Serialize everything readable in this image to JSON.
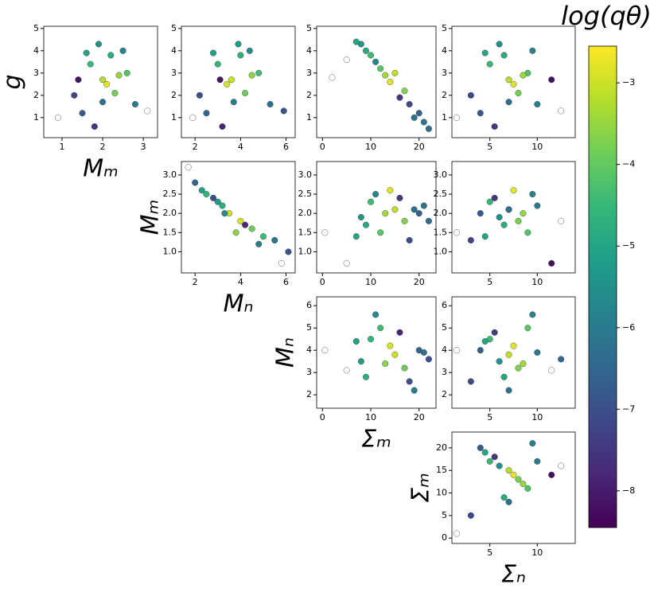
{
  "chart_data": [
    {
      "type": "scatter",
      "xlabel": "Mₘ",
      "ylabel": "g",
      "x": [
        2.0,
        1.7,
        2.3,
        1.5,
        2.6,
        1.9,
        2.1,
        1.3,
        2.8,
        2.2,
        1.8,
        2.4,
        0.9,
        3.1,
        1.6,
        2.0,
        2.5,
        1.4
      ],
      "y": [
        2.7,
        3.4,
        2.1,
        1.2,
        3.0,
        4.3,
        2.5,
        2.0,
        1.6,
        3.8,
        0.6,
        2.9,
        1.0,
        1.3,
        3.9,
        1.7,
        4.0,
        2.7
      ],
      "c": [
        -3.2,
        -4.5,
        -3.8,
        -6.8,
        -4.2,
        -5.5,
        -2.8,
        -7.2,
        -6.0,
        -4.8,
        -7.5,
        -3.5,
        null,
        null,
        -5.0,
        -6.3,
        -5.8,
        -8.2
      ],
      "xlim": [
        0.55,
        3.35
      ],
      "xticks": [
        1,
        2,
        3
      ],
      "ylim": [
        0.1,
        5.1
      ],
      "yticks": [
        1,
        2,
        3,
        4,
        5
      ]
    },
    {
      "type": "scatter",
      "x": [
        3.6,
        3.0,
        4.2,
        2.5,
        4.8,
        3.9,
        3.4,
        2.2,
        5.3,
        4.0,
        3.2,
        4.5,
        1.9,
        5.9,
        2.8,
        3.7,
        4.4,
        3.1
      ],
      "y": [
        2.7,
        3.4,
        2.1,
        1.2,
        3.0,
        4.3,
        2.5,
        2.0,
        1.6,
        3.8,
        0.6,
        2.9,
        1.0,
        1.3,
        3.9,
        1.7,
        4.0,
        2.7
      ],
      "c": [
        -3.0,
        -4.6,
        -3.9,
        -6.5,
        -4.4,
        -5.2,
        -2.9,
        -7.0,
        -6.2,
        -4.7,
        -7.8,
        -3.6,
        null,
        -6.9,
        -5.1,
        -6.0,
        -5.6,
        -8.1
      ],
      "xlim": [
        1.4,
        6.4
      ],
      "xticks": [
        2,
        4,
        6
      ],
      "ylim": [
        0.1,
        5.1
      ],
      "yticks": [
        1,
        2,
        3,
        4,
        5
      ]
    },
    {
      "type": "scatter",
      "x": [
        15,
        10,
        17,
        20,
        12,
        8,
        14,
        18,
        21,
        9,
        16,
        13,
        2,
        22,
        7,
        19,
        11,
        5
      ],
      "y": [
        3.0,
        3.8,
        2.2,
        1.2,
        3.2,
        4.3,
        2.6,
        1.6,
        0.8,
        4.0,
        1.9,
        2.9,
        2.8,
        0.5,
        4.4,
        1.0,
        3.5,
        3.6
      ],
      "c": [
        -3.1,
        -4.4,
        -3.7,
        -6.6,
        -4.1,
        -5.4,
        -2.8,
        -7.1,
        -6.1,
        -4.9,
        -7.4,
        -3.4,
        null,
        -6.4,
        -5.0,
        -6.2,
        -5.7,
        null
      ],
      "xlim": [
        -1.2,
        23.5
      ],
      "xticks": [
        0,
        10,
        20
      ],
      "ylim": [
        0.1,
        5.1
      ],
      "yticks": [
        1,
        2,
        3,
        4,
        5
      ]
    },
    {
      "type": "scatter",
      "x": [
        7,
        5,
        8,
        4,
        9,
        6,
        7.5,
        3,
        10,
        6.5,
        5.5,
        8.5,
        1.5,
        12.5,
        4.5,
        7,
        9.5,
        11.5
      ],
      "y": [
        2.7,
        3.4,
        2.1,
        1.2,
        3.0,
        4.3,
        2.5,
        2.0,
        1.6,
        3.8,
        0.6,
        2.9,
        1.0,
        1.3,
        3.9,
        1.7,
        4.0,
        2.7
      ],
      "c": [
        -3.2,
        -4.5,
        -3.8,
        -6.8,
        -4.2,
        -5.5,
        -2.8,
        -7.2,
        -6.0,
        -4.8,
        -7.5,
        -3.5,
        null,
        null,
        -5.0,
        -6.3,
        -5.8,
        -8.2
      ],
      "xlim": [
        1,
        14
      ],
      "xticks": [
        5,
        10
      ],
      "ylim": [
        0.1,
        5.1
      ],
      "yticks": [
        1,
        2,
        3,
        4,
        5
      ]
    },
    {
      "type": "scatter",
      "xlabel": "Mₙ",
      "ylabel": "Mₘ",
      "x": [
        3.5,
        2.5,
        4.5,
        2.0,
        5.0,
        3.0,
        4.0,
        2.8,
        5.5,
        3.2,
        4.2,
        3.8,
        1.7,
        6.1,
        2.3,
        4.8,
        3.3,
        5.8
      ],
      "y": [
        2.0,
        2.5,
        1.6,
        2.8,
        1.4,
        2.3,
        1.8,
        2.4,
        1.3,
        2.2,
        1.7,
        1.5,
        3.2,
        1.0,
        2.6,
        1.2,
        2.0,
        0.7
      ],
      "c": [
        -3.0,
        -4.6,
        -3.9,
        -6.5,
        -4.4,
        -5.2,
        -2.9,
        -7.0,
        -6.2,
        -4.7,
        -7.8,
        -3.6,
        null,
        -6.9,
        -5.1,
        -6.0,
        -5.6,
        null
      ],
      "xlim": [
        1.4,
        6.4
      ],
      "xticks": [
        2,
        4,
        6
      ],
      "ylim": [
        0.45,
        3.35
      ],
      "yticks": [
        {
          "value": 1,
          "label": "1.0"
        },
        {
          "value": 1.5,
          "label": "1.5"
        },
        {
          "value": 2,
          "label": "2.0"
        },
        {
          "value": 2.5,
          "label": "2.5"
        },
        {
          "value": 3,
          "label": "3.0"
        }
      ]
    },
    {
      "type": "scatter",
      "x": [
        15,
        10,
        17,
        20,
        12,
        8,
        14,
        18,
        21,
        9,
        16,
        13,
        0.5,
        22,
        7,
        19,
        11,
        5
      ],
      "y": [
        2.1,
        2.3,
        1.8,
        2.0,
        1.5,
        1.9,
        2.6,
        1.3,
        2.2,
        1.7,
        2.4,
        2.0,
        1.5,
        1.8,
        1.4,
        2.1,
        2.5,
        0.7
      ],
      "c": [
        -3.1,
        -4.4,
        -3.7,
        -6.6,
        -4.1,
        -5.4,
        -2.8,
        -7.1,
        -6.1,
        -4.9,
        -7.4,
        -3.4,
        null,
        -6.4,
        -5.0,
        -6.2,
        -5.7,
        null
      ],
      "xlim": [
        -1.2,
        23.5
      ],
      "xticks": [
        0,
        10,
        20
      ],
      "ylim": [
        0.45,
        3.35
      ],
      "yticks": [
        {
          "value": 1,
          "label": "1.0"
        },
        {
          "value": 1.5,
          "label": "1.5"
        },
        {
          "value": 2,
          "label": "2.0"
        },
        {
          "value": 2.5,
          "label": "2.5"
        },
        {
          "value": 3,
          "label": "3.0"
        }
      ]
    },
    {
      "type": "scatter",
      "x": [
        7,
        5,
        8,
        4,
        9,
        6,
        7.5,
        3,
        10,
        6.5,
        5.5,
        8.5,
        1.5,
        12.5,
        4.5,
        7,
        9.5,
        11.5
      ],
      "y": [
        2.1,
        2.3,
        1.8,
        2.0,
        1.5,
        1.9,
        2.6,
        1.3,
        2.2,
        1.7,
        2.4,
        2.0,
        1.5,
        1.8,
        1.4,
        2.1,
        2.5,
        0.7
      ],
      "c": [
        -3.2,
        -4.5,
        -3.8,
        -6.8,
        -4.2,
        -5.5,
        -2.8,
        -7.2,
        -6.0,
        -4.8,
        -7.5,
        -3.5,
        null,
        null,
        -5.0,
        -6.3,
        -5.8,
        -8.2
      ],
      "xlim": [
        1,
        14
      ],
      "xticks": [
        5,
        10
      ],
      "ylim": [
        0.45,
        3.35
      ],
      "yticks": [
        {
          "value": 1,
          "label": "1.0"
        },
        {
          "value": 1.5,
          "label": "1.5"
        },
        {
          "value": 2,
          "label": "2.0"
        },
        {
          "value": 2.5,
          "label": "2.5"
        },
        {
          "value": 3,
          "label": "3.0"
        }
      ]
    },
    {
      "type": "scatter",
      "xlabel": "Σₘ",
      "ylabel": "Mₙ",
      "x": [
        15,
        10,
        17,
        20,
        12,
        8,
        14,
        18,
        21,
        9,
        16,
        13,
        0.5,
        22,
        7,
        19,
        11,
        5
      ],
      "y": [
        3.8,
        4.5,
        3.2,
        4.0,
        5.0,
        3.5,
        4.2,
        2.6,
        3.9,
        2.8,
        4.8,
        3.4,
        4.0,
        3.6,
        4.4,
        2.2,
        5.6,
        3.1
      ],
      "c": [
        -3.0,
        -4.6,
        -3.9,
        -6.5,
        -4.4,
        -5.2,
        -2.9,
        -7.0,
        -6.2,
        -4.7,
        -7.8,
        -3.6,
        null,
        -6.9,
        -5.1,
        -6.0,
        -5.6,
        null
      ],
      "xlim": [
        -1.2,
        23.5
      ],
      "xticks": [
        0,
        10,
        20
      ],
      "ylim": [
        1.4,
        6.4
      ],
      "yticks": [
        2,
        3,
        4,
        5,
        6
      ]
    },
    {
      "type": "scatter",
      "x": [
        7,
        5,
        8,
        4,
        9,
        6,
        7.5,
        3,
        10,
        6.5,
        5.5,
        8.5,
        1.5,
        12.5,
        4.5,
        7,
        9.5,
        11.5
      ],
      "y": [
        3.8,
        4.5,
        3.2,
        4.0,
        5.0,
        3.5,
        4.2,
        2.6,
        3.9,
        2.8,
        4.8,
        3.4,
        4.0,
        3.6,
        4.4,
        2.2,
        5.6,
        3.1
      ],
      "c": [
        -3.1,
        -4.4,
        -3.7,
        -6.6,
        -4.1,
        -5.4,
        -2.8,
        -7.1,
        -6.1,
        -4.9,
        -7.4,
        -3.4,
        null,
        -6.4,
        -5.0,
        -6.2,
        -5.7,
        null
      ],
      "xlim": [
        1,
        14
      ],
      "xticks": [
        5,
        10
      ],
      "ylim": [
        1.4,
        6.4
      ],
      "yticks": [
        2,
        3,
        4,
        5,
        6
      ]
    },
    {
      "type": "scatter",
      "xlabel": "Σₙ",
      "ylabel": "Σₘ",
      "x": [
        7,
        5,
        8,
        4,
        9,
        6,
        7.5,
        3,
        10,
        6.5,
        5.5,
        8.5,
        1.5,
        12.5,
        4.5,
        7,
        9.5,
        11.5
      ],
      "y": [
        15,
        17,
        13,
        20,
        11,
        16,
        14,
        5,
        17,
        9,
        18,
        12,
        1,
        16,
        19,
        8,
        21,
        14
      ],
      "c": [
        -3.2,
        -4.5,
        -3.8,
        -6.8,
        -4.2,
        -5.5,
        -2.8,
        -7.2,
        -6.0,
        -4.8,
        -7.5,
        -3.5,
        null,
        null,
        -5.0,
        -6.3,
        -5.8,
        -8.2
      ],
      "xlim": [
        1,
        14
      ],
      "xticks": [
        5,
        10
      ],
      "ylim": [
        -1.2,
        23.5
      ],
      "yticks": [
        0,
        5,
        10,
        15,
        20
      ]
    },
    {
      "type": "colorbar",
      "title": "log(qθ)",
      "cmap": "viridis",
      "clim": [
        -8.45,
        -2.55
      ],
      "ticks": [
        {
          "value": -3,
          "label": "−3"
        },
        {
          "value": -4,
          "label": "−4"
        },
        {
          "value": -5,
          "label": "−5"
        },
        {
          "value": -6,
          "label": "−6"
        },
        {
          "value": -7,
          "label": "−7"
        },
        {
          "value": -8,
          "label": "−8"
        }
      ]
    }
  ]
}
